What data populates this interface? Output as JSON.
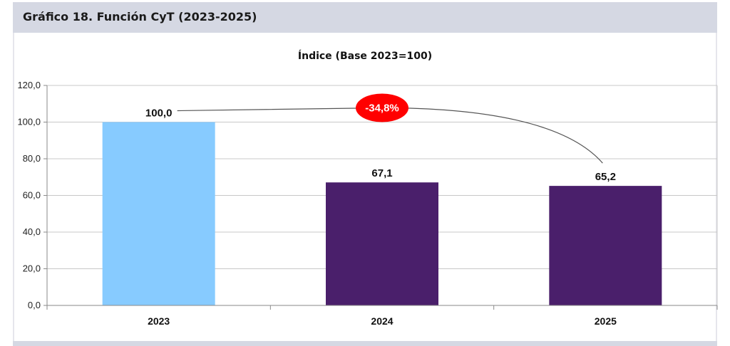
{
  "header": {
    "title": "Gráfico 18. Función CyT (2023-2025)"
  },
  "chart_data": {
    "type": "bar",
    "title": "Índice (Base 2023=100)",
    "xlabel": "",
    "ylabel": "",
    "categories": [
      "2023",
      "2024",
      "2025"
    ],
    "values": [
      100.0,
      67.1,
      65.2
    ],
    "value_labels": [
      "100,0",
      "67,1",
      "65,2"
    ],
    "bar_colors": [
      "#87cbff",
      "#4a1f6b",
      "#4a1f6b"
    ],
    "ylim": [
      0,
      120
    ],
    "yticks": [
      0,
      20,
      40,
      60,
      80,
      100,
      120
    ],
    "ytick_labels": [
      "0,0",
      "20,0",
      "40,0",
      "60,0",
      "80,0",
      "100,0",
      "120,0"
    ],
    "grid": true,
    "legend": "none",
    "annotation": {
      "text": "-34,8%",
      "from": "2023",
      "to": "2025",
      "badge_color": "#ff0000"
    }
  }
}
